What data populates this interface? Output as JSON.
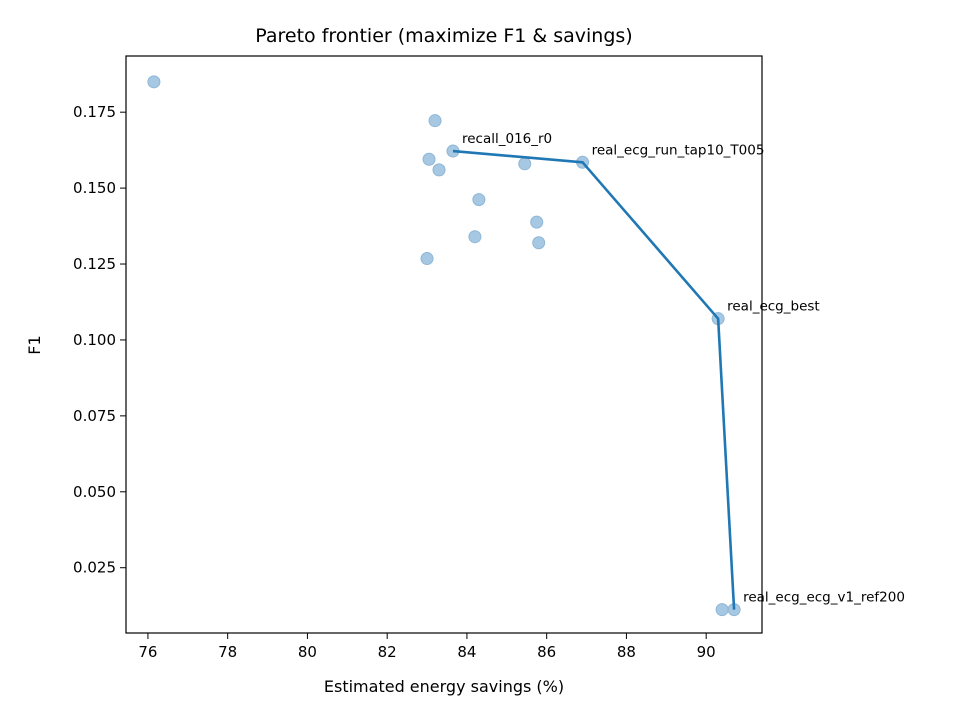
{
  "chart_data": {
    "type": "scatter",
    "title": "Pareto frontier (maximize F1 & savings)",
    "xlabel": "Estimated energy savings (%)",
    "ylabel": "F1",
    "xlim": [
      75.45,
      91.4
    ],
    "ylim": [
      0.0035,
      0.1935
    ],
    "x_ticks": [
      76,
      78,
      80,
      82,
      84,
      86,
      88,
      90
    ],
    "y_ticks": [
      0.025,
      0.05,
      0.075,
      0.1,
      0.125,
      0.15,
      0.175
    ],
    "x_tick_labels": [
      "76",
      "78",
      "80",
      "82",
      "84",
      "86",
      "88",
      "90"
    ],
    "y_tick_labels": [
      "0.025",
      "0.050",
      "0.075",
      "0.100",
      "0.125",
      "0.150",
      "0.175"
    ],
    "grid": false,
    "point_color": "#a6c8e2",
    "point_edge_color": "#8fb6d6",
    "line_color": "#1f77b4",
    "points": [
      {
        "x": 76.15,
        "y": 0.185
      },
      {
        "x": 83.2,
        "y": 0.1722
      },
      {
        "x": 83.65,
        "y": 0.1622
      },
      {
        "x": 83.05,
        "y": 0.1595
      },
      {
        "x": 83.3,
        "y": 0.156
      },
      {
        "x": 85.45,
        "y": 0.158
      },
      {
        "x": 86.9,
        "y": 0.1585
      },
      {
        "x": 84.3,
        "y": 0.1462
      },
      {
        "x": 85.75,
        "y": 0.1388
      },
      {
        "x": 84.2,
        "y": 0.134
      },
      {
        "x": 85.8,
        "y": 0.132
      },
      {
        "x": 83.0,
        "y": 0.1268
      },
      {
        "x": 90.3,
        "y": 0.107
      },
      {
        "x": 90.4,
        "y": 0.0112
      },
      {
        "x": 90.7,
        "y": 0.0112
      }
    ],
    "frontier": [
      {
        "x": 83.65,
        "y": 0.1622,
        "label": "recall_016_r0"
      },
      {
        "x": 86.9,
        "y": 0.1585,
        "label": "real_ecg_run_tap10_T005"
      },
      {
        "x": 90.3,
        "y": 0.107,
        "label": "real_ecg_best"
      },
      {
        "x": 90.7,
        "y": 0.0112,
        "label": "real_ecg_ecg_v1_ref200"
      }
    ]
  }
}
